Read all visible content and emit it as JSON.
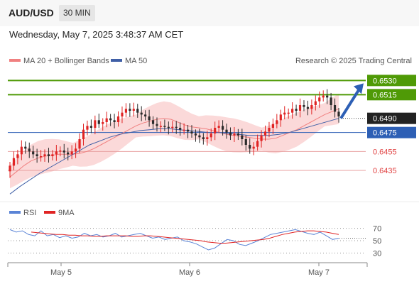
{
  "header": {
    "symbol": "AUD/USD",
    "timeframe": "30 MIN"
  },
  "datetime": "Wednesday, May 7, 2025 3:48:37 AM CET",
  "legend": {
    "ma20_bb": "MA 20 + Bollinger Bands",
    "ma50": "MA 50",
    "credit": "Research © 2025 Trading Central",
    "rsi": "RSI",
    "rsi_ma": "9MA"
  },
  "colors": {
    "resistance": "#4f9a06",
    "pivot": "#2d5fb5",
    "support": "#e8a0a0",
    "support_text": "#e14343",
    "bollinger": "#fbd9d9",
    "ma20": "#f08080",
    "ma50": "#3f5fa6",
    "candle_up": "#e02424",
    "candle_down": "#2b2b2b",
    "rsi": "#5a84d6",
    "rsi_ma": "#e02424",
    "current_price_box": "#222222"
  },
  "chart_data": [
    {
      "type": "candlestick",
      "title": "AUD/USD 30 MIN",
      "x_labels": [
        "May 5",
        "May 6",
        "May 7"
      ],
      "ylim": [
        0.6405,
        0.654
      ],
      "levels": [
        {
          "value": 0.653,
          "label": "0.6530",
          "kind": "resistance"
        },
        {
          "value": 0.6515,
          "label": "0.6515",
          "kind": "resistance"
        },
        {
          "value": 0.649,
          "label": "0.6490",
          "kind": "current"
        },
        {
          "value": 0.6475,
          "label": "0.6475",
          "kind": "pivot"
        },
        {
          "value": 0.6455,
          "label": "0.6455",
          "kind": "support"
        },
        {
          "value": 0.6435,
          "label": "0.6435",
          "kind": "support"
        }
      ],
      "arrow": {
        "from": 0.649,
        "to": 0.653,
        "direction": "up"
      },
      "close_series": [
        0.644,
        0.6448,
        0.6452,
        0.646,
        0.6458,
        0.6455,
        0.6452,
        0.645,
        0.645,
        0.6452,
        0.645,
        0.6452,
        0.6455,
        0.6456,
        0.6454,
        0.6452,
        0.6455,
        0.6458,
        0.6468,
        0.6478,
        0.6482,
        0.648,
        0.6488,
        0.6484,
        0.6486,
        0.649,
        0.6488,
        0.6486,
        0.6492,
        0.6496,
        0.65,
        0.6498,
        0.65,
        0.6496,
        0.6494,
        0.6492,
        0.6488,
        0.6484,
        0.6482,
        0.6482,
        0.6481,
        0.648,
        0.6481,
        0.648,
        0.6478,
        0.6478,
        0.6476,
        0.6474,
        0.6472,
        0.647,
        0.6468,
        0.647,
        0.6474,
        0.648,
        0.6482,
        0.6478,
        0.6475,
        0.6472,
        0.6474,
        0.6472,
        0.6468,
        0.6462,
        0.6458,
        0.646,
        0.6466,
        0.6472,
        0.6476,
        0.648,
        0.6484,
        0.6488,
        0.6494,
        0.6496,
        0.6496,
        0.65,
        0.6498,
        0.6504,
        0.6502,
        0.65,
        0.6504,
        0.6508,
        0.6512,
        0.6514,
        0.6512,
        0.6504,
        0.6497,
        0.6492
      ],
      "ma20_series": [
        0.6428,
        0.6434,
        0.644,
        0.6445,
        0.6448,
        0.645,
        0.6451,
        0.6452,
        0.6452,
        0.6452,
        0.6453,
        0.6455,
        0.6458,
        0.6462,
        0.6466,
        0.647,
        0.6474,
        0.6478,
        0.6482,
        0.6485,
        0.6487,
        0.6489,
        0.649,
        0.6489,
        0.6486,
        0.6483,
        0.6481,
        0.648,
        0.6479,
        0.6477,
        0.6475,
        0.6473,
        0.6472,
        0.6471,
        0.647,
        0.6469,
        0.6468,
        0.6468,
        0.6469,
        0.6472,
        0.6475,
        0.6478,
        0.6482,
        0.6486,
        0.649,
        0.6494,
        0.6497,
        0.65
      ],
      "ma50_series": [
        0.641,
        0.6418,
        0.6425,
        0.6432,
        0.6438,
        0.6444,
        0.645,
        0.6456,
        0.6462,
        0.6466,
        0.647,
        0.6473,
        0.6475,
        0.6477,
        0.6478,
        0.6479,
        0.6479,
        0.6478,
        0.6477,
        0.6476,
        0.6475,
        0.6475,
        0.6474,
        0.6473,
        0.6472,
        0.6472,
        0.6472,
        0.6473,
        0.6475,
        0.6478,
        0.6481,
        0.6484,
        0.6487,
        0.649
      ]
    },
    {
      "type": "line",
      "title": "RSI",
      "ylim": [
        20,
        80
      ],
      "y_ticks": [
        70,
        50,
        30
      ],
      "series": [
        {
          "name": "RSI",
          "values": [
            68,
            64,
            66,
            60,
            58,
            66,
            58,
            60,
            55,
            58,
            54,
            56,
            62,
            58,
            60,
            56,
            58,
            62,
            56,
            58,
            60,
            62,
            58,
            54,
            56,
            52,
            54,
            56,
            50,
            48,
            45,
            40,
            35,
            38,
            45,
            52,
            50,
            44,
            42,
            46,
            50,
            55,
            60,
            62,
            64,
            66,
            68,
            65,
            62,
            60,
            64,
            58,
            52,
            54
          ]
        },
        {
          "name": "9MA",
          "values": [
            64,
            63,
            62,
            61,
            60,
            60,
            59,
            59,
            58,
            58,
            57,
            57,
            58,
            58,
            58,
            58,
            57,
            57,
            58,
            58,
            57,
            56,
            55,
            54,
            53,
            52,
            51,
            50,
            48,
            47,
            46,
            46,
            47,
            48,
            49,
            50,
            51,
            52,
            54,
            57,
            60,
            62,
            64,
            65,
            66,
            66,
            65,
            64,
            62,
            60
          ]
        }
      ]
    }
  ]
}
